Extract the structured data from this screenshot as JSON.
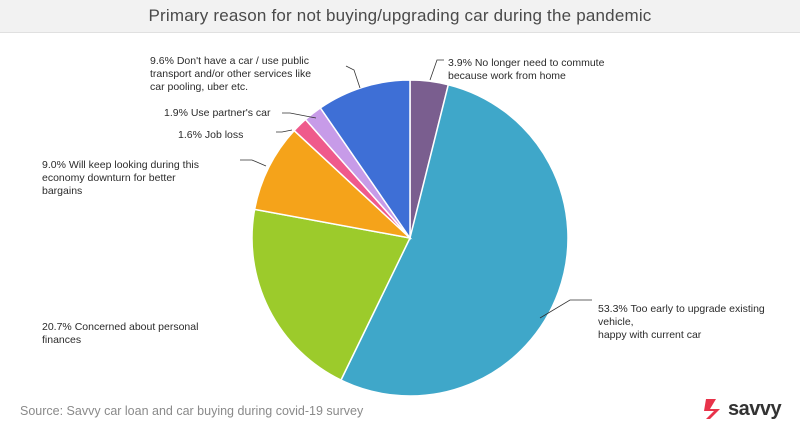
{
  "header": {
    "title": "Primary reason for not buying/upgrading car during the pandemic"
  },
  "footer": {
    "source": "Source: Savvy car loan and car buying during covid-19 survey",
    "brand": "savvy",
    "brand_color": "#e8334a"
  },
  "chart_data": {
    "type": "pie",
    "title": "Primary reason for not buying/upgrading car during the pandemic",
    "start_angle_deg": 0,
    "direction": "clockwise",
    "slices": [
      {
        "value": 3.9,
        "color": "#7a5e8f",
        "label_lines": [
          "3.9% No longer need to commute",
          "because work from home"
        ]
      },
      {
        "value": 53.3,
        "color": "#3fa7c9",
        "label_lines": [
          "53.3% Too early to upgrade existing",
          "vehicle,",
          "happy with current car"
        ]
      },
      {
        "value": 20.7,
        "color": "#9ccb2b",
        "label_lines": [
          "20.7% Concerned about personal",
          "finances"
        ]
      },
      {
        "value": 9.0,
        "color": "#f5a31a",
        "label_lines": [
          "9.0% Will keep looking during this",
          "economy downturn for better",
          "bargains"
        ]
      },
      {
        "value": 1.6,
        "color": "#ef5a8c",
        "label_lines": [
          "1.6% Job loss"
        ]
      },
      {
        "value": 1.9,
        "color": "#c79be8",
        "label_lines": [
          "1.9% Use partner's car"
        ]
      },
      {
        "value": 9.6,
        "color": "#3e6fd6",
        "label_lines": [
          "9.6% Don't have a car / use public",
          "transport and/or other services like",
          "car pooling, uber etc."
        ]
      }
    ]
  }
}
